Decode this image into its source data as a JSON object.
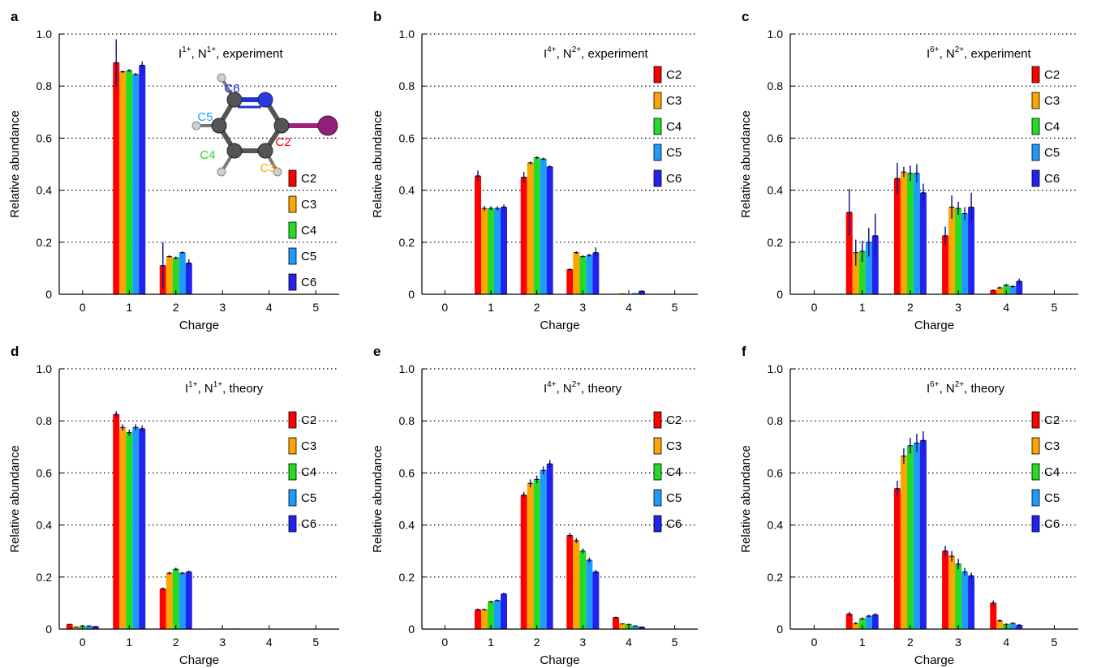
{
  "series_colors": {
    "C2": "#ff0000",
    "C3": "#ffa500",
    "C4": "#22dd22",
    "C5": "#1e9bff",
    "C6": "#2222ee"
  },
  "chart_data": [
    {
      "panel": "a",
      "type": "bar",
      "annotation": {
        "base1": "I",
        "sup1": "1+",
        "base2": "N",
        "sup2": "1+",
        "tail": "experiment"
      },
      "xlabel": "Charge",
      "ylabel": "Relative abundance",
      "categories": [
        "0",
        "1",
        "2",
        "3",
        "4",
        "5"
      ],
      "ylim": [
        0,
        1.0
      ],
      "yticks": [
        "0",
        "0.2",
        "0.4",
        "0.6",
        "0.8",
        "1.0"
      ],
      "grid": "dotted horizontal",
      "legend_position": "right",
      "inset": {
        "kind": "molecule",
        "atom_labels": [
          {
            "text": "C6",
            "color": "#2222ee"
          },
          {
            "text": "C5",
            "color": "#1e9bff"
          },
          {
            "text": "C4",
            "color": "#22dd22"
          },
          {
            "text": "C3",
            "color": "#ffa500"
          },
          {
            "text": "C2",
            "color": "#ff0000"
          }
        ]
      },
      "series": [
        {
          "name": "C2",
          "values": [
            0,
            0.89,
            0.11,
            0,
            0,
            0
          ],
          "errors": [
            0,
            0.09,
            0.09,
            0,
            0,
            0
          ]
        },
        {
          "name": "C3",
          "values": [
            0,
            0.855,
            0.145,
            0,
            0,
            0
          ],
          "errors": [
            0,
            0.005,
            0.005,
            0,
            0,
            0
          ]
        },
        {
          "name": "C4",
          "values": [
            0,
            0.86,
            0.14,
            0,
            0,
            0
          ],
          "errors": [
            0,
            0.005,
            0.005,
            0,
            0,
            0
          ]
        },
        {
          "name": "C5",
          "values": [
            0,
            0.845,
            0.16,
            0,
            0,
            0
          ],
          "errors": [
            0,
            0.005,
            0.005,
            0,
            0,
            0
          ]
        },
        {
          "name": "C6",
          "values": [
            0,
            0.88,
            0.12,
            0,
            0,
            0
          ],
          "errors": [
            0,
            0.015,
            0.015,
            0,
            0,
            0
          ]
        }
      ]
    },
    {
      "panel": "b",
      "type": "bar",
      "annotation": {
        "base1": "I",
        "sup1": "4+",
        "base2": "N",
        "sup2": "2+",
        "tail": "experiment"
      },
      "xlabel": "Charge",
      "ylabel": "Relative abundance",
      "categories": [
        "0",
        "1",
        "2",
        "3",
        "4",
        "5"
      ],
      "ylim": [
        0,
        1.0
      ],
      "yticks": [
        "0",
        "0.2",
        "0.4",
        "0.6",
        "0.8",
        "1.0"
      ],
      "grid": "dotted horizontal",
      "legend_position": "top-right",
      "series": [
        {
          "name": "C2",
          "values": [
            0,
            0.455,
            0.45,
            0.095,
            0,
            0
          ],
          "errors": [
            0,
            0.02,
            0.02,
            0.005,
            0,
            0
          ]
        },
        {
          "name": "C3",
          "values": [
            0,
            0.33,
            0.505,
            0.16,
            0.005,
            0
          ],
          "errors": [
            0,
            0.01,
            0.005,
            0.005,
            0,
            0
          ]
        },
        {
          "name": "C4",
          "values": [
            0,
            0.33,
            0.525,
            0.145,
            0,
            0
          ],
          "errors": [
            0,
            0.008,
            0.005,
            0.005,
            0,
            0
          ]
        },
        {
          "name": "C5",
          "values": [
            0,
            0.33,
            0.52,
            0.15,
            0.005,
            0
          ],
          "errors": [
            0,
            0.008,
            0.005,
            0.005,
            0,
            0
          ]
        },
        {
          "name": "C6",
          "values": [
            0,
            0.335,
            0.49,
            0.16,
            0.012,
            0
          ],
          "errors": [
            0,
            0.01,
            0.005,
            0.02,
            0.003,
            0
          ]
        }
      ]
    },
    {
      "panel": "c",
      "type": "bar",
      "annotation": {
        "base1": "I",
        "sup1": "6+",
        "base2": "N",
        "sup2": "2+",
        "tail": "experiment"
      },
      "xlabel": "Charge",
      "ylabel": "Relative abundance",
      "categories": [
        "0",
        "1",
        "2",
        "3",
        "4",
        "5"
      ],
      "ylim": [
        0,
        1.0
      ],
      "yticks": [
        "0",
        "0.2",
        "0.4",
        "0.6",
        "0.8",
        "1.0"
      ],
      "grid": "dotted horizontal",
      "legend_position": "top-right",
      "series": [
        {
          "name": "C2",
          "values": [
            0,
            0.315,
            0.445,
            0.225,
            0.015,
            0
          ],
          "errors": [
            0,
            0.09,
            0.06,
            0.035,
            0.003,
            0
          ]
        },
        {
          "name": "C3",
          "values": [
            0,
            0.16,
            0.47,
            0.335,
            0.025,
            0
          ],
          "errors": [
            0,
            0.05,
            0.02,
            0.045,
            0.005,
            0
          ]
        },
        {
          "name": "C4",
          "values": [
            0,
            0.165,
            0.465,
            0.33,
            0.035,
            0
          ],
          "errors": [
            0,
            0.04,
            0.03,
            0.025,
            0.005,
            0
          ]
        },
        {
          "name": "C5",
          "values": [
            0,
            0.2,
            0.465,
            0.31,
            0.03,
            0
          ],
          "errors": [
            0,
            0.055,
            0.035,
            0.025,
            0.005,
            0
          ]
        },
        {
          "name": "C6",
          "values": [
            0,
            0.225,
            0.39,
            0.335,
            0.05,
            0
          ],
          "errors": [
            0,
            0.085,
            0.035,
            0.055,
            0.01,
            0
          ]
        }
      ]
    },
    {
      "panel": "d",
      "type": "bar",
      "annotation": {
        "base1": "I",
        "sup1": "1+",
        "base2": "N",
        "sup2": "1+",
        "tail": "theory"
      },
      "xlabel": "Charge",
      "ylabel": "Relative abundance",
      "categories": [
        "0",
        "1",
        "2",
        "3",
        "4",
        "5"
      ],
      "ylim": [
        0,
        1.0
      ],
      "yticks": [
        "0",
        "0.2",
        "0.4",
        "0.6",
        "0.8",
        "1.0"
      ],
      "grid": "dotted horizontal",
      "legend_position": "top-right",
      "series": [
        {
          "name": "C2",
          "values": [
            0.018,
            0.825,
            0.155,
            0,
            0,
            0
          ],
          "errors": [
            0.002,
            0.012,
            0.005,
            0,
            0,
            0
          ]
        },
        {
          "name": "C3",
          "values": [
            0.008,
            0.775,
            0.215,
            0.002,
            0,
            0
          ],
          "errors": [
            0.002,
            0.012,
            0.005,
            0,
            0,
            0
          ]
        },
        {
          "name": "C4",
          "values": [
            0.012,
            0.755,
            0.23,
            0.002,
            0,
            0
          ],
          "errors": [
            0.002,
            0.012,
            0.006,
            0,
            0,
            0
          ]
        },
        {
          "name": "C5",
          "values": [
            0.012,
            0.775,
            0.215,
            0.002,
            0,
            0
          ],
          "errors": [
            0.002,
            0.012,
            0.005,
            0,
            0,
            0
          ]
        },
        {
          "name": "C6",
          "values": [
            0.01,
            0.77,
            0.22,
            0.002,
            0,
            0
          ],
          "errors": [
            0.002,
            0.012,
            0.005,
            0,
            0,
            0
          ]
        }
      ]
    },
    {
      "panel": "e",
      "type": "bar",
      "annotation": {
        "base1": "I",
        "sup1": "4+",
        "base2": "N",
        "sup2": "2+",
        "tail": "theory"
      },
      "xlabel": "Charge",
      "ylabel": "Relative abundance",
      "categories": [
        "0",
        "1",
        "2",
        "3",
        "4",
        "5"
      ],
      "ylim": [
        0,
        1.0
      ],
      "yticks": [
        "0",
        "0.2",
        "0.4",
        "0.6",
        "0.8",
        "1.0"
      ],
      "grid": "dotted horizontal",
      "legend_position": "right",
      "series": [
        {
          "name": "C2",
          "values": [
            0,
            0.075,
            0.515,
            0.36,
            0.045,
            0
          ],
          "errors": [
            0,
            0.004,
            0.012,
            0.01,
            0.003,
            0
          ]
        },
        {
          "name": "C3",
          "values": [
            0,
            0.075,
            0.56,
            0.34,
            0.02,
            0
          ],
          "errors": [
            0,
            0.004,
            0.015,
            0.01,
            0.002,
            0
          ]
        },
        {
          "name": "C4",
          "values": [
            0,
            0.105,
            0.575,
            0.3,
            0.018,
            0
          ],
          "errors": [
            0,
            0.004,
            0.015,
            0.01,
            0.002,
            0
          ]
        },
        {
          "name": "C5",
          "values": [
            0,
            0.11,
            0.61,
            0.265,
            0.012,
            0
          ],
          "errors": [
            0,
            0.004,
            0.015,
            0.01,
            0.002,
            0
          ]
        },
        {
          "name": "C6",
          "values": [
            0,
            0.135,
            0.635,
            0.22,
            0.008,
            0
          ],
          "errors": [
            0,
            0.005,
            0.015,
            0.008,
            0.002,
            0
          ]
        }
      ]
    },
    {
      "panel": "f",
      "type": "bar",
      "annotation": {
        "base1": "I",
        "sup1": "6+",
        "base2": "N",
        "sup2": "2+",
        "tail": "theory"
      },
      "xlabel": "Charge",
      "ylabel": "Relative abundance",
      "categories": [
        "0",
        "1",
        "2",
        "3",
        "4",
        "5"
      ],
      "ylim": [
        0,
        1.0
      ],
      "yticks": [
        "0",
        "0.2",
        "0.4",
        "0.6",
        "0.8",
        "1.0"
      ],
      "grid": "dotted horizontal",
      "legend_position": "top-right",
      "series": [
        {
          "name": "C2",
          "values": [
            0,
            0.058,
            0.54,
            0.3,
            0.1,
            0
          ],
          "errors": [
            0,
            0.008,
            0.03,
            0.02,
            0.01,
            0
          ]
        },
        {
          "name": "C3",
          "values": [
            0,
            0.022,
            0.665,
            0.28,
            0.032,
            0
          ],
          "errors": [
            0,
            0.004,
            0.03,
            0.02,
            0.005,
            0
          ]
        },
        {
          "name": "C4",
          "values": [
            0,
            0.04,
            0.705,
            0.25,
            0.018,
            0
          ],
          "errors": [
            0,
            0.005,
            0.03,
            0.02,
            0.004,
            0
          ]
        },
        {
          "name": "C5",
          "values": [
            0,
            0.05,
            0.715,
            0.22,
            0.022,
            0
          ],
          "errors": [
            0,
            0.005,
            0.035,
            0.015,
            0.004,
            0
          ]
        },
        {
          "name": "C6",
          "values": [
            0,
            0.055,
            0.725,
            0.205,
            0.015,
            0
          ],
          "errors": [
            0,
            0.006,
            0.035,
            0.012,
            0.004,
            0
          ]
        }
      ]
    }
  ]
}
